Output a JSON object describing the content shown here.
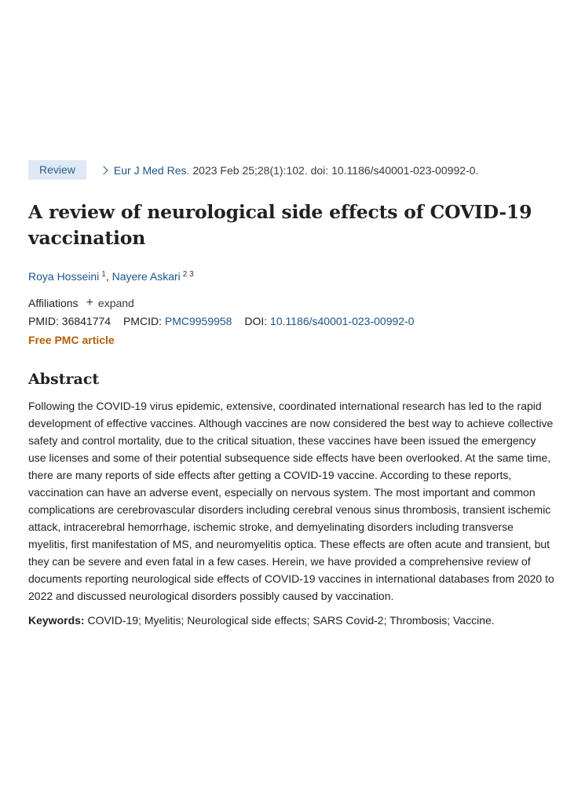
{
  "citation": {
    "badge": "Review",
    "journal": "Eur J Med Res.",
    "details": "2023 Feb 25;28(1):102. doi: 10.1186/s40001-023-00992-0."
  },
  "title": "A review of neurological side effects of COVID-19 vaccination",
  "authors": [
    {
      "name": "Roya Hosseini",
      "sup": "1"
    },
    {
      "name": "Nayere Askari",
      "sup": "2 3"
    }
  ],
  "affiliations": {
    "label": "Affiliations",
    "expand": "expand"
  },
  "ids": {
    "pmid_label": "PMID:",
    "pmid": "36841774",
    "pmcid_label": "PMCID:",
    "pmcid": "PMC9959958",
    "doi_label": "DOI:",
    "doi": "10.1186/s40001-023-00992-0"
  },
  "free_pmc": "Free PMC article",
  "abstract": {
    "heading": "Abstract",
    "text": "Following the COVID-19 virus epidemic, extensive, coordinated international research has led to the rapid development of effective vaccines. Although vaccines are now considered the best way to achieve collective safety and control mortality, due to the critical situation, these vaccines have been issued the emergency use licenses and some of their potential subsequence side effects have been overlooked. At the same time, there are many reports of side effects after getting a COVID-19 vaccine. According to these reports, vaccination can have an adverse event, especially on nervous system. The most important and common complications are cerebrovascular disorders including cerebral venous sinus thrombosis, transient ischemic attack, intracerebral hemorrhage, ischemic stroke, and demyelinating disorders including transverse myelitis, first manifestation of MS, and neuromyelitis optica. These effects are often acute and transient, but they can be severe and even fatal in a few cases. Herein, we have provided a comprehensive review of documents reporting neurological side effects of COVID-19 vaccines in international databases from 2020 to 2022 and discussed neurological disorders possibly caused by vaccination."
  },
  "keywords": {
    "label": "Keywords:",
    "text": "COVID-19; Myelitis; Neurological side effects; SARS Covid-2; Thrombosis; Vaccine."
  },
  "colors": {
    "link": "#20558a",
    "badge_bg": "#dfe9f5",
    "free_pmc": "#b45f06"
  }
}
